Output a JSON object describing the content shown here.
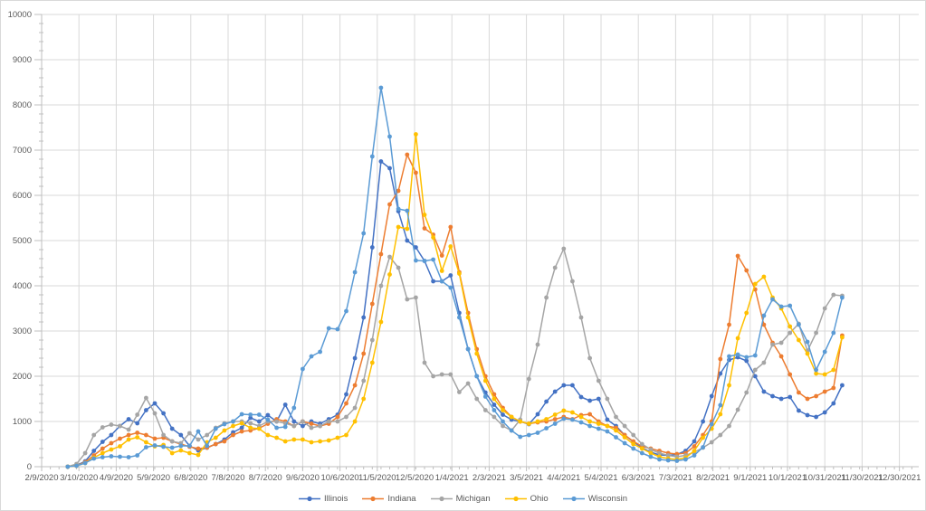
{
  "chart_data": {
    "type": "line",
    "title": "",
    "xlabel": "",
    "ylabel": "",
    "grid": true,
    "legend_position": "bottom",
    "y_axis": {
      "min": 0,
      "max": 10000,
      "step": 1000,
      "tick_labels": [
        "0",
        "1000",
        "2000",
        "3000",
        "4000",
        "5000",
        "6000",
        "7000",
        "8000",
        "9000",
        "10000"
      ]
    },
    "x_axis_tick_labels": [
      "2/9/2020",
      "3/10/2020",
      "4/9/2020",
      "5/9/2020",
      "6/8/2020",
      "7/8/2020",
      "8/7/2020",
      "9/6/2020",
      "10/6/2020",
      "11/5/2020",
      "12/5/2020",
      "1/4/2021",
      "2/3/2021",
      "3/5/2021",
      "4/4/2021",
      "5/4/2021",
      "6/3/2021",
      "7/3/2021",
      "8/2/2021",
      "9/1/2021",
      "10/1/2021",
      "10/31/2021",
      "11/30/2021",
      "12/30/2021"
    ],
    "x_axis_start": "2/9/2020",
    "x_axis_end": "12/30/2021",
    "x": [
      "3/1/2020",
      "3/8/2020",
      "3/15/2020",
      "3/22/2020",
      "3/29/2020",
      "4/5/2020",
      "4/12/2020",
      "4/19/2020",
      "4/26/2020",
      "5/3/2020",
      "5/10/2020",
      "5/17/2020",
      "5/24/2020",
      "5/31/2020",
      "6/7/2020",
      "6/14/2020",
      "6/21/2020",
      "6/28/2020",
      "7/5/2020",
      "7/12/2020",
      "7/19/2020",
      "7/26/2020",
      "8/2/2020",
      "8/9/2020",
      "8/16/2020",
      "8/23/2020",
      "8/30/2020",
      "9/6/2020",
      "9/13/2020",
      "9/20/2020",
      "9/27/2020",
      "10/4/2020",
      "10/11/2020",
      "10/18/2020",
      "10/25/2020",
      "11/1/2020",
      "11/8/2020",
      "11/15/2020",
      "11/22/2020",
      "11/29/2020",
      "12/6/2020",
      "12/13/2020",
      "12/20/2020",
      "12/27/2020",
      "1/3/2021",
      "1/10/2021",
      "1/17/2021",
      "1/24/2021",
      "1/31/2021",
      "2/7/2021",
      "2/14/2021",
      "2/21/2021",
      "2/28/2021",
      "3/7/2021",
      "3/14/2021",
      "3/21/2021",
      "3/28/2021",
      "4/4/2021",
      "4/11/2021",
      "4/18/2021",
      "4/25/2021",
      "5/2/2021",
      "5/9/2021",
      "5/16/2021",
      "5/23/2021",
      "5/30/2021",
      "6/6/2021",
      "6/13/2021",
      "6/20/2021",
      "6/27/2021",
      "7/4/2021",
      "7/11/2021",
      "7/18/2021",
      "7/25/2021",
      "8/1/2021",
      "8/8/2021",
      "8/15/2021",
      "8/22/2021",
      "8/29/2021",
      "9/5/2021",
      "9/12/2021",
      "9/19/2021",
      "9/26/2021",
      "10/3/2021",
      "10/10/2021",
      "10/17/2021",
      "10/24/2021",
      "10/31/2021",
      "11/7/2021",
      "11/14/2021"
    ],
    "series": [
      {
        "name": "Illinois",
        "color": "#4472C4",
        "values": [
          0,
          30,
          120,
          350,
          550,
          700,
          900,
          1050,
          960,
          1250,
          1400,
          1180,
          840,
          700,
          460,
          360,
          420,
          500,
          600,
          760,
          860,
          1080,
          1000,
          1140,
          1000,
          1370,
          1000,
          900,
          1000,
          950,
          1050,
          1150,
          1600,
          2400,
          3300,
          4850,
          6750,
          6600,
          5650,
          5000,
          4850,
          4550,
          4100,
          4100,
          4230,
          3400,
          2600,
          2000,
          1640,
          1370,
          1150,
          1040,
          1000,
          940,
          1160,
          1440,
          1660,
          1800,
          1800,
          1540,
          1460,
          1500,
          1040,
          900,
          700,
          550,
          420,
          320,
          260,
          250,
          270,
          350,
          560,
          1000,
          1560,
          2060,
          2360,
          2420,
          2340,
          2000,
          1660,
          1560,
          1500,
          1540,
          1240,
          1140,
          1100,
          1200,
          1400,
          1800
        ]
      },
      {
        "name": "Indiana",
        "color": "#ED7D31",
        "values": [
          0,
          20,
          100,
          250,
          400,
          520,
          620,
          700,
          750,
          700,
          620,
          640,
          560,
          500,
          440,
          400,
          420,
          500,
          560,
          700,
          780,
          800,
          850,
          950,
          1050,
          1000,
          900,
          1000,
          950,
          900,
          950,
          1100,
          1400,
          1800,
          2500,
          3600,
          4700,
          5800,
          6100,
          6900,
          6500,
          5270,
          5130,
          4670,
          5300,
          4300,
          3400,
          2600,
          2000,
          1600,
          1300,
          1100,
          1000,
          950,
          980,
          1000,
          1050,
          1100,
          1050,
          1140,
          1160,
          1000,
          900,
          860,
          700,
          560,
          450,
          400,
          350,
          300,
          280,
          300,
          450,
          700,
          1000,
          2380,
          3140,
          4660,
          4340,
          3920,
          3140,
          2740,
          2440,
          2040,
          1640,
          1500,
          1560,
          1660,
          1740,
          2900
        ]
      },
      {
        "name": "Michigan",
        "color": "#A5A5A5",
        "values": [
          0,
          60,
          300,
          700,
          870,
          930,
          900,
          820,
          1150,
          1520,
          1180,
          700,
          560,
          520,
          740,
          600,
          700,
          860,
          960,
          1000,
          1000,
          960,
          900,
          1000,
          1000,
          960,
          900,
          1000,
          860,
          900,
          1000,
          1000,
          1100,
          1300,
          1900,
          2800,
          4000,
          4640,
          4400,
          3700,
          3740,
          2300,
          2000,
          2040,
          2040,
          1650,
          1840,
          1500,
          1250,
          1100,
          900,
          800,
          1040,
          1940,
          2700,
          3740,
          4400,
          4820,
          4100,
          3300,
          2400,
          1900,
          1500,
          1100,
          900,
          700,
          500,
          380,
          300,
          250,
          220,
          250,
          320,
          420,
          540,
          700,
          900,
          1260,
          1640,
          2140,
          2300,
          2700,
          2740,
          2960,
          3160,
          2560,
          2960,
          3500,
          3800,
          3780
        ]
      },
      {
        "name": "Ohio",
        "color": "#FFC000",
        "values": [
          0,
          20,
          80,
          200,
          300,
          380,
          450,
          600,
          650,
          540,
          450,
          480,
          300,
          360,
          300,
          260,
          540,
          640,
          800,
          900,
          960,
          860,
          840,
          700,
          640,
          560,
          600,
          600,
          540,
          560,
          580,
          640,
          700,
          1000,
          1500,
          2300,
          3200,
          4250,
          5300,
          5260,
          7350,
          5570,
          5070,
          4330,
          4870,
          4270,
          3300,
          2500,
          1900,
          1500,
          1250,
          1100,
          1000,
          950,
          1000,
          1050,
          1150,
          1240,
          1200,
          1100,
          1000,
          950,
          900,
          800,
          650,
          500,
          400,
          300,
          220,
          180,
          160,
          200,
          350,
          640,
          840,
          1160,
          1800,
          2840,
          3400,
          4040,
          4200,
          3740,
          3500,
          3100,
          2800,
          2500,
          2060,
          2040,
          2140,
          2860
        ]
      },
      {
        "name": "Wisconsin",
        "color": "#5B9BD5",
        "values": [
          0,
          20,
          80,
          180,
          210,
          230,
          220,
          210,
          250,
          430,
          470,
          440,
          420,
          460,
          460,
          780,
          460,
          840,
          940,
          1000,
          1160,
          1150,
          1150,
          1040,
          860,
          880,
          1300,
          2160,
          2440,
          2540,
          3060,
          3040,
          3440,
          4300,
          5160,
          6860,
          8380,
          7300,
          5700,
          5660,
          4560,
          4550,
          4580,
          4100,
          3960,
          3300,
          2600,
          2000,
          1550,
          1250,
          1000,
          800,
          660,
          700,
          750,
          850,
          950,
          1060,
          1040,
          980,
          900,
          840,
          780,
          650,
          520,
          400,
          300,
          220,
          160,
          140,
          130,
          160,
          250,
          430,
          940,
          1360,
          2440,
          2480,
          2420,
          2460,
          3340,
          3700,
          3540,
          3560,
          3140,
          2760,
          2140,
          2540,
          2960,
          3740
        ]
      }
    ]
  },
  "legend": {
    "entries": [
      "Illinois",
      "Indiana",
      "Michigan",
      "Ohio",
      "Wisconsin"
    ]
  },
  "colors": {
    "background": "#FFFFFF",
    "frame_border": "#D9D9D9",
    "gridline": "#D9D9D9",
    "axis_line": "#BFBFBF",
    "tick_mark": "#BFBFBF",
    "axis_label_text": "#595959",
    "series": {
      "Illinois": "#4472C4",
      "Indiana": "#ED7D31",
      "Michigan": "#A5A5A5",
      "Ohio": "#FFC000",
      "Wisconsin": "#5B9BD5"
    }
  }
}
